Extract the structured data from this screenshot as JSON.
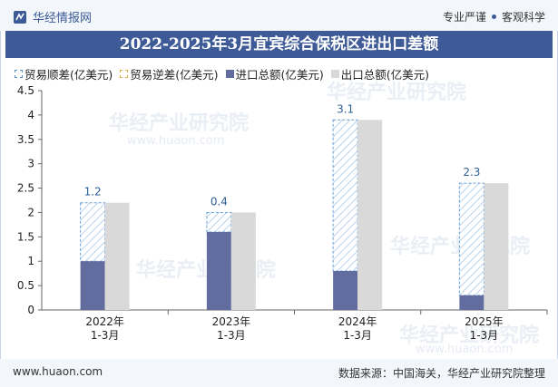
{
  "header": {
    "brand": "华经情报网",
    "right_text_1": "专业严谨",
    "right_text_2": "客观科学"
  },
  "title": "2022-2025年3月宜宾综合保税区进出口差额",
  "legend": [
    {
      "label": "贸易顺差(亿美元)",
      "swatch": "hatch-blue"
    },
    {
      "label": "贸易逆差(亿美元)",
      "swatch": "hatch-yellow"
    },
    {
      "label": "进口总额(亿美元)",
      "swatch": "blue"
    },
    {
      "label": "出口总额(亿美元)",
      "swatch": "grey"
    }
  ],
  "watermark": {
    "text": "华经产业研究院",
    "url": "www.huaon.com"
  },
  "footer": {
    "left": "www.huaon.com",
    "right": "数据来源：中国海关，华经产业研究院整理"
  },
  "colors": {
    "import": "#636c9e",
    "export": "#d9d9d9",
    "surplus_hatch": "#9ec3e6",
    "surplus_label": "#2e5f96",
    "axis": "#666666"
  },
  "chart_data": {
    "type": "bar",
    "title": "2022-2025年3月宜宾综合保税区进出口差额",
    "categories": [
      "2022年\n1-3月",
      "2023年\n1-3月",
      "2024年\n1-3月",
      "2025年\n1-3月"
    ],
    "series": [
      {
        "name": "进口总额(亿美元)",
        "values": [
          1.0,
          1.6,
          0.8,
          0.3
        ]
      },
      {
        "name": "出口总额(亿美元)",
        "values": [
          2.2,
          2.0,
          3.9,
          2.6
        ]
      },
      {
        "name": "贸易顺差(亿美元)",
        "values": [
          1.2,
          0.4,
          3.1,
          2.3
        ]
      },
      {
        "name": "贸易逆差(亿美元)",
        "values": [
          0,
          0,
          0,
          0
        ]
      }
    ],
    "y_ticks": [
      "0",
      "0.5",
      "1",
      "1.5",
      "2",
      "2.5",
      "3",
      "3.5",
      "4",
      "4.5"
    ],
    "ylim": [
      0,
      4.5
    ],
    "xlabel": "",
    "ylabel": ""
  }
}
